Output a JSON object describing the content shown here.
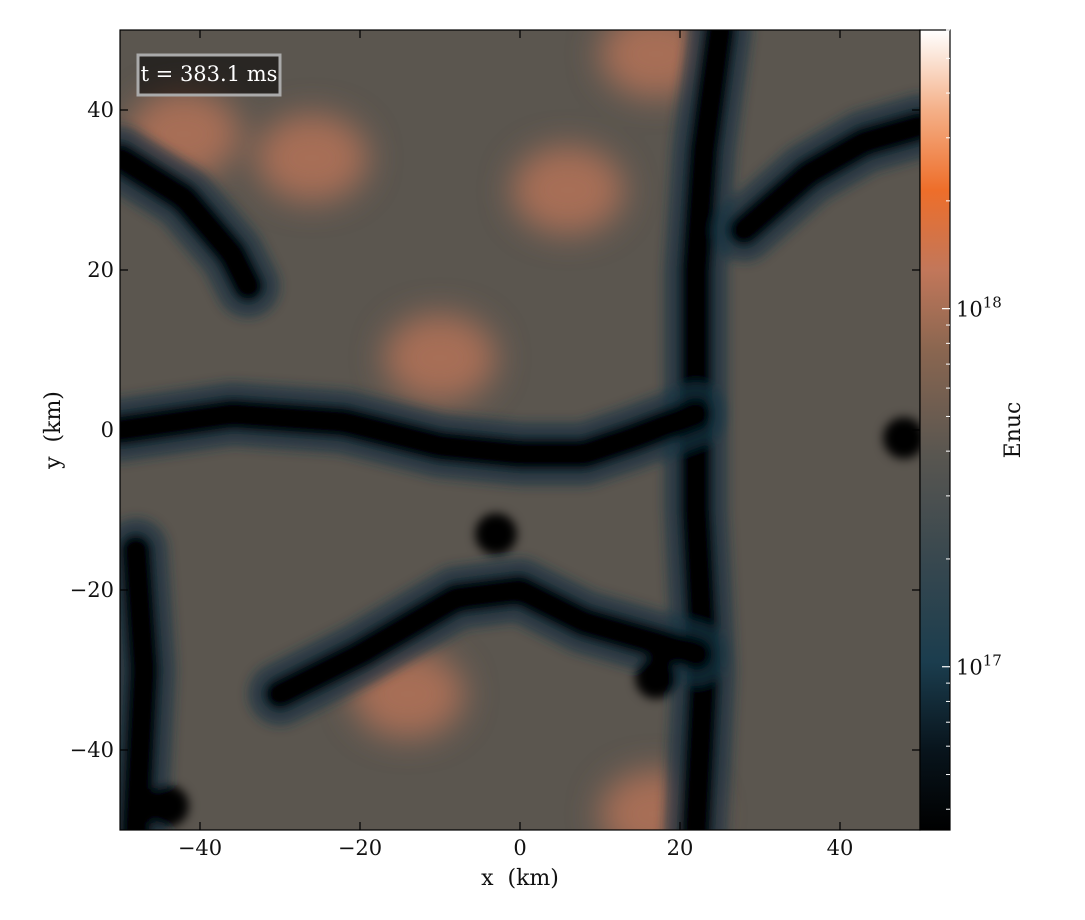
{
  "chart_data": {
    "type": "heatmap",
    "annotation": "t = 383.1 ms",
    "xlabel": "x  (km)",
    "ylabel": "y  (km)",
    "xlim": [
      -50,
      50
    ],
    "ylim": [
      -50,
      50
    ],
    "x_ticks": [
      -40,
      -20,
      0,
      20,
      40
    ],
    "y_ticks": [
      40,
      20,
      0,
      -20,
      -40
    ],
    "x_tick_labels": [
      "−40",
      "−20",
      "0",
      "20",
      "40"
    ],
    "y_tick_labels": [
      "40",
      "20",
      "0",
      "−20",
      "−40"
    ],
    "grid": false,
    "colorbar": {
      "label": "Enuc",
      "scale": "log",
      "range": [
        3.5e+16,
        6e+18
      ],
      "ticks": [
        1e+17,
        1e+18
      ],
      "tick_labels": [
        {
          "mantissa": "10",
          "exponent": "17"
        },
        {
          "mantissa": "10",
          "exponent": "18"
        }
      ],
      "colormap": [
        "#000000",
        "#08141c",
        "#1b3d4e",
        "#36474f",
        "#595650",
        "#8a6650",
        "#c2775a",
        "#ee6e2a",
        "#f4b088",
        "#ffffff"
      ]
    },
    "field_features": [
      {
        "kind": "low_band",
        "name": "vertical band right of center",
        "points": [
          [
            22,
            -50
          ],
          [
            23,
            -30
          ],
          [
            22,
            -10
          ],
          [
            22,
            5
          ],
          [
            22,
            20
          ],
          [
            23,
            35
          ],
          [
            25,
            50
          ]
        ]
      },
      {
        "kind": "low_band",
        "name": "lower diagonal band",
        "points": [
          [
            -30,
            -33
          ],
          [
            -20,
            -28
          ],
          [
            -8,
            -21
          ],
          [
            0,
            -20
          ],
          [
            8,
            -24
          ],
          [
            22,
            -28
          ]
        ]
      },
      {
        "kind": "low_band",
        "name": "central horizontal filament",
        "points": [
          [
            -50,
            0
          ],
          [
            -36,
            2
          ],
          [
            -22,
            1
          ],
          [
            -10,
            -2
          ],
          [
            0,
            -3
          ],
          [
            8,
            -3
          ],
          [
            14,
            -1
          ],
          [
            22,
            2
          ]
        ]
      },
      {
        "kind": "low_band",
        "name": "upper-right filament",
        "points": [
          [
            28,
            25
          ],
          [
            36,
            32
          ],
          [
            43,
            36
          ],
          [
            50,
            38
          ]
        ]
      },
      {
        "kind": "low_band",
        "name": "upper-left filament",
        "points": [
          [
            -50,
            34
          ],
          [
            -42,
            29
          ],
          [
            -36,
            22
          ],
          [
            -34,
            18
          ]
        ]
      },
      {
        "kind": "low_band",
        "name": "left edge band",
        "points": [
          [
            -48,
            -50
          ],
          [
            -47,
            -30
          ],
          [
            -48,
            -15
          ]
        ]
      },
      {
        "kind": "low_spot",
        "name": "dark blob",
        "points": [
          [
            -3,
            -13
          ]
        ]
      },
      {
        "kind": "low_spot",
        "name": "dark blob",
        "points": [
          [
            48,
            -1
          ]
        ]
      },
      {
        "kind": "low_spot",
        "name": "dark blob",
        "points": [
          [
            -44,
            -47
          ]
        ]
      },
      {
        "kind": "low_spot",
        "name": "dark blob",
        "points": [
          [
            17,
            -31
          ]
        ]
      },
      {
        "kind": "high_spot",
        "name": "bright patch",
        "points": [
          [
            -42,
            37
          ]
        ]
      },
      {
        "kind": "high_spot",
        "name": "bright patch",
        "points": [
          [
            -10,
            9
          ]
        ]
      },
      {
        "kind": "high_spot",
        "name": "bright patch",
        "points": [
          [
            -14,
            -33
          ]
        ]
      },
      {
        "kind": "high_spot",
        "name": "bright patch",
        "points": [
          [
            17,
            47
          ]
        ]
      },
      {
        "kind": "high_spot",
        "name": "bright patch",
        "points": [
          [
            6,
            30
          ]
        ]
      },
      {
        "kind": "high_spot",
        "name": "bright patch",
        "points": [
          [
            17,
            -48
          ]
        ]
      },
      {
        "kind": "high_spot",
        "name": "bright patch",
        "points": [
          [
            -26,
            34
          ]
        ]
      }
    ]
  }
}
